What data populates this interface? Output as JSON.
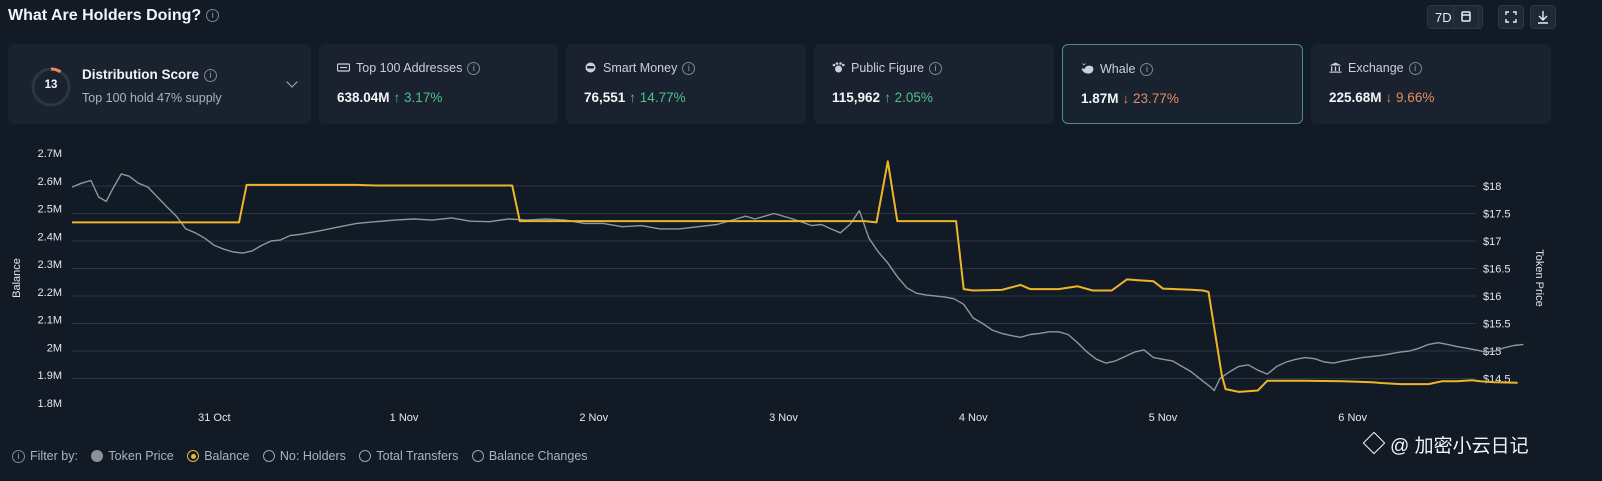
{
  "header": {
    "title": "What Are Holders Doing?",
    "range": "7D"
  },
  "distribution": {
    "score": "13",
    "title": "Distribution Score",
    "subtitle": "Top 100 hold 47% supply"
  },
  "cards": [
    {
      "label": "Top 100 Addresses",
      "value": "638.04M",
      "change": "↑ 3.17%",
      "dir": "up"
    },
    {
      "label": "Smart Money",
      "value": "76,551",
      "change": "↑ 14.77%",
      "dir": "up"
    },
    {
      "label": "Public Figure",
      "value": "115,962",
      "change": "↑ 2.05%",
      "dir": "up"
    },
    {
      "label": "Whale",
      "value": "1.87M",
      "change": "↓ 23.77%",
      "dir": "down"
    },
    {
      "label": "Exchange",
      "value": "225.68M",
      "change": "↓ 9.66%",
      "dir": "down"
    }
  ],
  "filter": {
    "label": "Filter by:",
    "options": [
      "Token Price",
      "Balance",
      "No: Holders",
      "Total Transfers",
      "Balance Changes"
    ]
  },
  "watermark": "@ 加密小云日记",
  "colors": {
    "balance": "#f0b429",
    "price": "#8e96a0",
    "grid": "#2a3444"
  },
  "chart_data": {
    "type": "line",
    "title": "",
    "left_axis": {
      "label": "Balance",
      "ticks": [
        "2.7M",
        "2.6M",
        "2.5M",
        "2.4M",
        "2.3M",
        "2.2M",
        "2.1M",
        "2M",
        "1.9M",
        "1.8M"
      ],
      "range": [
        1.8,
        2.7
      ]
    },
    "right_axis": {
      "label": "Token Price",
      "ticks": [
        "$18",
        "$17.5",
        "$17",
        "$16.5",
        "$16",
        "$15.5",
        "$15",
        "$14.5"
      ],
      "range": [
        14.0,
        18.4
      ]
    },
    "x_ticks": [
      {
        "label": "31 Oct",
        "t": 0.75
      },
      {
        "label": "1 Nov",
        "t": 1.75
      },
      {
        "label": "2 Nov",
        "t": 2.75
      },
      {
        "label": "3 Nov",
        "t": 3.75
      },
      {
        "label": "4 Nov",
        "t": 4.75
      },
      {
        "label": "5 Nov",
        "t": 5.75
      },
      {
        "label": "6 Nov",
        "t": 6.75
      }
    ],
    "t_range": [
      0,
      7.4
    ],
    "series": [
      {
        "name": "Balance",
        "unit": "M",
        "points": [
          [
            0,
            2.45
          ],
          [
            0.88,
            2.45
          ],
          [
            0.92,
            2.585
          ],
          [
            1.5,
            2.585
          ],
          [
            1.6,
            2.583
          ],
          [
            2.2,
            2.583
          ],
          [
            2.32,
            2.583
          ],
          [
            2.36,
            2.455
          ],
          [
            3.9,
            2.455
          ],
          [
            4.18,
            2.455
          ],
          [
            4.24,
            2.45
          ],
          [
            4.3,
            2.67
          ],
          [
            4.35,
            2.455
          ],
          [
            4.66,
            2.455
          ],
          [
            4.7,
            2.21
          ],
          [
            4.75,
            2.205
          ],
          [
            4.9,
            2.207
          ],
          [
            5.0,
            2.225
          ],
          [
            5.05,
            2.21
          ],
          [
            5.2,
            2.21
          ],
          [
            5.3,
            2.22
          ],
          [
            5.38,
            2.205
          ],
          [
            5.48,
            2.205
          ],
          [
            5.56,
            2.245
          ],
          [
            5.62,
            2.242
          ],
          [
            5.7,
            2.238
          ],
          [
            5.75,
            2.212
          ],
          [
            5.9,
            2.208
          ],
          [
            5.96,
            2.205
          ],
          [
            5.99,
            2.2
          ],
          [
            6.06,
            1.9
          ],
          [
            6.08,
            1.85
          ],
          [
            6.15,
            1.84
          ],
          [
            6.25,
            1.845
          ],
          [
            6.3,
            1.88
          ],
          [
            6.5,
            1.88
          ],
          [
            6.7,
            1.878
          ],
          [
            6.85,
            1.875
          ],
          [
            6.9,
            1.872
          ],
          [
            7.0,
            1.868
          ],
          [
            7.15,
            1.868
          ],
          [
            7.22,
            1.878
          ],
          [
            7.3,
            1.878
          ],
          [
            7.38,
            1.882
          ],
          [
            7.42,
            1.878
          ],
          [
            7.5,
            1.875
          ],
          [
            7.62,
            1.873
          ]
        ]
      },
      {
        "name": "Token Price",
        "unit": "$",
        "points": [
          [
            0,
            17.98
          ],
          [
            0.05,
            18.05
          ],
          [
            0.1,
            18.1
          ],
          [
            0.14,
            17.8
          ],
          [
            0.18,
            17.72
          ],
          [
            0.22,
            17.98
          ],
          [
            0.26,
            18.22
          ],
          [
            0.3,
            18.18
          ],
          [
            0.35,
            18.05
          ],
          [
            0.4,
            17.98
          ],
          [
            0.45,
            17.8
          ],
          [
            0.5,
            17.62
          ],
          [
            0.55,
            17.45
          ],
          [
            0.6,
            17.22
          ],
          [
            0.65,
            17.15
          ],
          [
            0.7,
            17.05
          ],
          [
            0.75,
            16.92
          ],
          [
            0.8,
            16.85
          ],
          [
            0.85,
            16.8
          ],
          [
            0.9,
            16.78
          ],
          [
            0.95,
            16.82
          ],
          [
            1.0,
            16.92
          ],
          [
            1.05,
            17.0
          ],
          [
            1.1,
            17.02
          ],
          [
            1.15,
            17.1
          ],
          [
            1.2,
            17.12
          ],
          [
            1.3,
            17.18
          ],
          [
            1.4,
            17.25
          ],
          [
            1.5,
            17.32
          ],
          [
            1.6,
            17.35
          ],
          [
            1.7,
            17.38
          ],
          [
            1.8,
            17.4
          ],
          [
            1.9,
            17.38
          ],
          [
            2.0,
            17.42
          ],
          [
            2.1,
            17.36
          ],
          [
            2.2,
            17.35
          ],
          [
            2.3,
            17.4
          ],
          [
            2.4,
            17.38
          ],
          [
            2.5,
            17.4
          ],
          [
            2.6,
            17.38
          ],
          [
            2.7,
            17.32
          ],
          [
            2.8,
            17.32
          ],
          [
            2.9,
            17.26
          ],
          [
            3.0,
            17.28
          ],
          [
            3.1,
            17.22
          ],
          [
            3.2,
            17.22
          ],
          [
            3.3,
            17.26
          ],
          [
            3.4,
            17.3
          ],
          [
            3.5,
            17.4
          ],
          [
            3.55,
            17.45
          ],
          [
            3.6,
            17.4
          ],
          [
            3.7,
            17.5
          ],
          [
            3.8,
            17.4
          ],
          [
            3.9,
            17.28
          ],
          [
            3.95,
            17.3
          ],
          [
            4.0,
            17.22
          ],
          [
            4.05,
            17.15
          ],
          [
            4.1,
            17.3
          ],
          [
            4.15,
            17.55
          ],
          [
            4.2,
            17.05
          ],
          [
            4.25,
            16.8
          ],
          [
            4.3,
            16.6
          ],
          [
            4.35,
            16.35
          ],
          [
            4.4,
            16.15
          ],
          [
            4.45,
            16.05
          ],
          [
            4.5,
            16.02
          ],
          [
            4.55,
            16.0
          ],
          [
            4.6,
            15.98
          ],
          [
            4.65,
            15.95
          ],
          [
            4.7,
            15.85
          ],
          [
            4.75,
            15.6
          ],
          [
            4.8,
            15.5
          ],
          [
            4.85,
            15.38
          ],
          [
            4.9,
            15.32
          ],
          [
            4.95,
            15.28
          ],
          [
            5.0,
            15.25
          ],
          [
            5.05,
            15.3
          ],
          [
            5.1,
            15.32
          ],
          [
            5.15,
            15.35
          ],
          [
            5.2,
            15.35
          ],
          [
            5.25,
            15.3
          ],
          [
            5.3,
            15.15
          ],
          [
            5.35,
            14.98
          ],
          [
            5.4,
            14.85
          ],
          [
            5.45,
            14.78
          ],
          [
            5.5,
            14.82
          ],
          [
            5.55,
            14.9
          ],
          [
            5.6,
            14.98
          ],
          [
            5.65,
            15.02
          ],
          [
            5.7,
            14.88
          ],
          [
            5.75,
            14.85
          ],
          [
            5.8,
            14.82
          ],
          [
            5.85,
            14.72
          ],
          [
            5.9,
            14.62
          ],
          [
            5.95,
            14.48
          ],
          [
            6.0,
            14.35
          ],
          [
            6.02,
            14.28
          ],
          [
            6.05,
            14.5
          ],
          [
            6.1,
            14.62
          ],
          [
            6.15,
            14.72
          ],
          [
            6.2,
            14.75
          ],
          [
            6.25,
            14.65
          ],
          [
            6.3,
            14.58
          ],
          [
            6.35,
            14.72
          ],
          [
            6.4,
            14.8
          ],
          [
            6.45,
            14.85
          ],
          [
            6.5,
            14.88
          ],
          [
            6.55,
            14.86
          ],
          [
            6.6,
            14.8
          ],
          [
            6.65,
            14.78
          ],
          [
            6.7,
            14.82
          ],
          [
            6.75,
            14.85
          ],
          [
            6.8,
            14.88
          ],
          [
            6.85,
            14.9
          ],
          [
            6.9,
            14.92
          ],
          [
            6.95,
            14.95
          ],
          [
            7.0,
            14.98
          ],
          [
            7.05,
            15.0
          ],
          [
            7.1,
            15.05
          ],
          [
            7.15,
            15.12
          ],
          [
            7.2,
            15.15
          ],
          [
            7.25,
            15.12
          ],
          [
            7.3,
            15.08
          ],
          [
            7.35,
            15.05
          ],
          [
            7.4,
            15.02
          ],
          [
            7.45,
            14.98
          ],
          [
            7.5,
            15.0
          ],
          [
            7.55,
            15.06
          ],
          [
            7.6,
            15.1
          ],
          [
            7.65,
            15.12
          ]
        ]
      }
    ]
  }
}
